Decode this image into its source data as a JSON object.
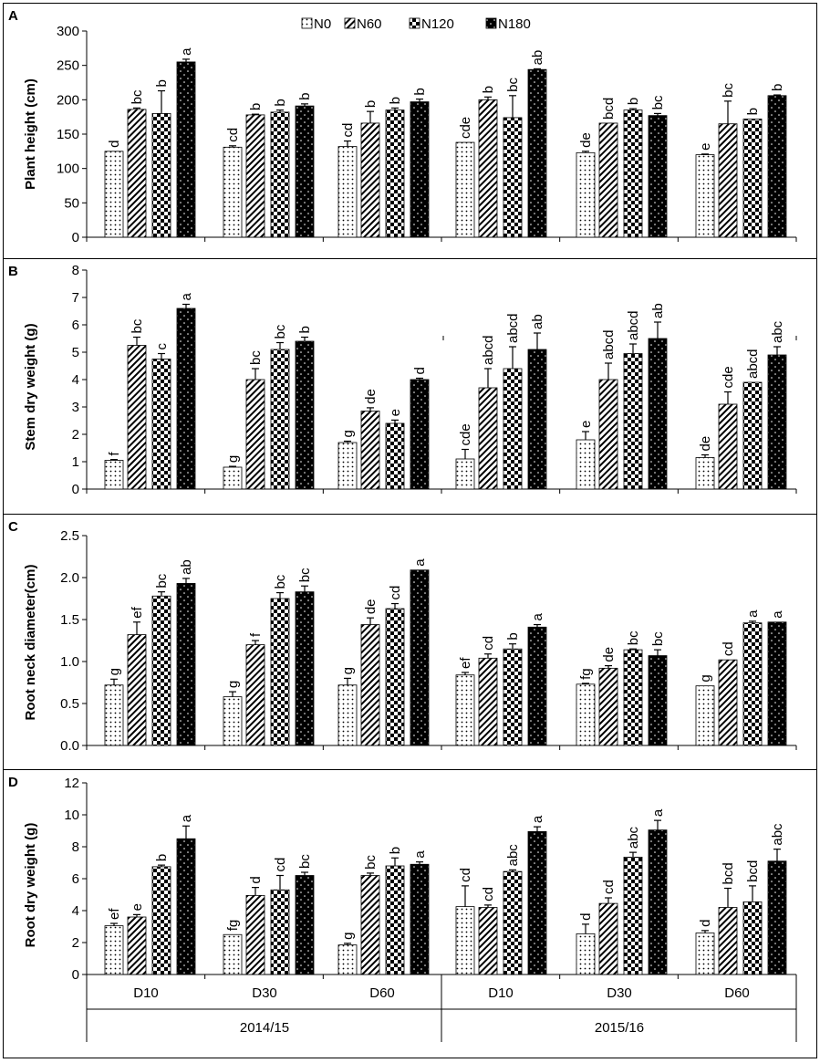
{
  "legend": [
    {
      "name": "N0",
      "pattern": "dots"
    },
    {
      "name": "N60",
      "pattern": "hatch"
    },
    {
      "name": "N120",
      "pattern": "checker"
    },
    {
      "name": "N180",
      "pattern": "solid"
    }
  ],
  "groups": [
    "D10",
    "D30",
    "D60",
    "D10",
    "D30",
    "D60"
  ],
  "years": [
    "2014/15",
    "2015/16"
  ],
  "chart_data": [
    {
      "type": "bar",
      "panel": "A",
      "ylabel": "Plant height (cm)",
      "ylim": [
        0,
        300
      ],
      "yticks": [
        "0",
        "50",
        "100",
        "150",
        "200",
        "250",
        "300"
      ],
      "categories": [
        "D10",
        "D30",
        "D60",
        "D10",
        "D30",
        "D60"
      ],
      "series": [
        {
          "name": "N0",
          "values": [
            125,
            131,
            132,
            138,
            123,
            120
          ],
          "errors": [
            0,
            2,
            8,
            0,
            2,
            1
          ],
          "labels": [
            "d",
            "cd",
            "cd",
            "cde",
            "de",
            "e"
          ]
        },
        {
          "name": "N60",
          "values": [
            186,
            178,
            166,
            200,
            166,
            165
          ],
          "errors": [
            2,
            1,
            17,
            4,
            0,
            33
          ],
          "labels": [
            "bc",
            "b",
            "b",
            "b",
            "bcd",
            "bc"
          ]
        },
        {
          "name": "N120",
          "values": [
            180,
            182,
            185,
            174,
            185,
            172
          ],
          "errors": [
            33,
            3,
            3,
            32,
            2,
            0
          ],
          "labels": [
            "b",
            "b",
            "b",
            "bc",
            "b",
            "b"
          ]
        },
        {
          "name": "N180",
          "values": [
            255,
            191,
            197,
            244,
            177,
            206
          ],
          "errors": [
            4,
            3,
            4,
            1,
            3,
            1
          ],
          "labels": [
            "a",
            "b",
            "b",
            "ab",
            "bc",
            "b"
          ]
        }
      ]
    },
    {
      "type": "bar",
      "panel": "B",
      "ylabel": "Stem dry weight (g)",
      "ylim": [
        0,
        8
      ],
      "yticks": [
        "0",
        "1",
        "2",
        "3",
        "4",
        "5",
        "6",
        "7",
        "8"
      ],
      "categories": [
        "D10",
        "D30",
        "D60",
        "D10",
        "D30",
        "D60"
      ],
      "series": [
        {
          "name": "N0",
          "values": [
            1.05,
            0.8,
            1.7,
            1.1,
            1.8,
            1.15
          ],
          "errors": [
            0.03,
            0.03,
            0.05,
            0.35,
            0.3,
            0.1
          ],
          "labels": [
            "f",
            "g",
            "g",
            "cde",
            "e",
            "de"
          ]
        },
        {
          "name": "N60",
          "values": [
            5.25,
            4.0,
            2.85,
            3.7,
            4.0,
            3.1
          ],
          "errors": [
            0.3,
            0.4,
            0.12,
            0.7,
            0.6,
            0.45
          ],
          "labels": [
            "bc",
            "bc",
            "de",
            "abcd",
            "abcd",
            "cde"
          ]
        },
        {
          "name": "N120",
          "values": [
            4.75,
            5.1,
            2.4,
            4.4,
            4.95,
            3.9
          ],
          "errors": [
            0.2,
            0.25,
            0.12,
            0.8,
            0.35,
            0
          ],
          "labels": [
            "c",
            "bc",
            "e",
            "abcd",
            "abcd",
            "abcd"
          ]
        },
        {
          "name": "N180",
          "values": [
            6.6,
            5.4,
            4.0,
            5.1,
            5.5,
            4.9
          ],
          "errors": [
            0.15,
            0.15,
            0.05,
            0.6,
            0.6,
            0.3
          ],
          "labels": [
            "a",
            "b",
            "d",
            "ab",
            "ab",
            "abc"
          ]
        }
      ]
    },
    {
      "type": "bar",
      "panel": "C",
      "ylabel": "Root neck diameter(cm)",
      "ylim": [
        0,
        2.5
      ],
      "yticks": [
        "0.0",
        "0.5",
        "1.0",
        "1.5",
        "2.0",
        "2.5"
      ],
      "categories": [
        "D10",
        "D30",
        "D60",
        "D10",
        "D30",
        "D60"
      ],
      "series": [
        {
          "name": "N0",
          "values": [
            0.72,
            0.58,
            0.72,
            0.84,
            0.73,
            0.71
          ],
          "errors": [
            0.07,
            0.06,
            0.08,
            0.03,
            0.01,
            0
          ],
          "labels": [
            "g",
            "g",
            "g",
            "ef",
            "fg",
            "g"
          ]
        },
        {
          "name": "N60",
          "values": [
            1.32,
            1.2,
            1.44,
            1.04,
            0.92,
            1.02
          ],
          "errors": [
            0.15,
            0.05,
            0.08,
            0.05,
            0.03,
            0
          ],
          "labels": [
            "ef",
            "f",
            "de",
            "cd",
            "de",
            "cd"
          ]
        },
        {
          "name": "N120",
          "values": [
            1.78,
            1.75,
            1.63,
            1.15,
            1.14,
            1.46
          ],
          "errors": [
            0.05,
            0.07,
            0.06,
            0.06,
            0.01,
            0.02
          ],
          "labels": [
            "bc",
            "bc",
            "cd",
            "b",
            "bc",
            "a"
          ]
        },
        {
          "name": "N180",
          "values": [
            1.93,
            1.83,
            2.09,
            1.41,
            1.07,
            1.47
          ],
          "errors": [
            0.06,
            0.07,
            0,
            0.03,
            0.07,
            0
          ],
          "labels": [
            "ab",
            "bc",
            "a",
            "a",
            "bc",
            "a"
          ]
        }
      ]
    },
    {
      "type": "bar",
      "panel": "D",
      "ylabel": "Root dry weight (g)",
      "ylim": [
        0,
        12
      ],
      "yticks": [
        "0",
        "2",
        "4",
        "6",
        "8",
        "10",
        "12"
      ],
      "categories": [
        "D10",
        "D30",
        "D60",
        "D10",
        "D30",
        "D60"
      ],
      "series": [
        {
          "name": "N0",
          "values": [
            3.05,
            2.5,
            1.85,
            4.25,
            2.55,
            2.6
          ],
          "errors": [
            0.15,
            0,
            0.1,
            1.3,
            0.6,
            0.15
          ],
          "labels": [
            "ef",
            "fg",
            "g",
            "cd",
            "d",
            "d"
          ]
        },
        {
          "name": "N60",
          "values": [
            3.6,
            4.95,
            6.2,
            4.2,
            4.45,
            4.2
          ],
          "errors": [
            0.15,
            0.5,
            0.15,
            0.15,
            0.35,
            1.2
          ],
          "labels": [
            "e",
            "d",
            "bc",
            "cd",
            "cd",
            "bcd"
          ]
        },
        {
          "name": "N120",
          "values": [
            6.75,
            5.3,
            6.8,
            6.45,
            7.35,
            4.55
          ],
          "errors": [
            0.1,
            0.9,
            0.5,
            0.1,
            0.3,
            1.0
          ],
          "labels": [
            "b",
            "cd",
            "b",
            "abc",
            "abc",
            "bcd"
          ]
        },
        {
          "name": "N180",
          "values": [
            8.5,
            6.2,
            6.9,
            8.95,
            9.05,
            7.1
          ],
          "errors": [
            0.8,
            0.2,
            0.15,
            0.3,
            0.6,
            0.75
          ],
          "labels": [
            "a",
            "bc",
            "a",
            "a",
            "a",
            "abc"
          ]
        }
      ]
    }
  ]
}
